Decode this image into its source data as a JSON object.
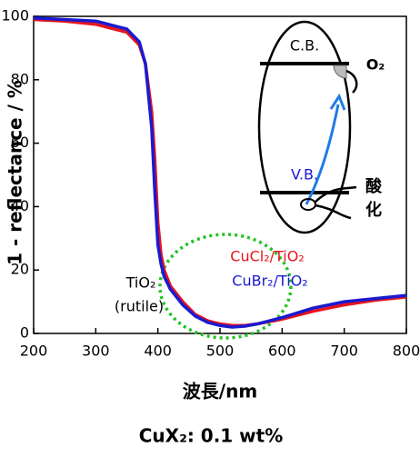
{
  "chart_data": {
    "type": "line",
    "x_label": "波長/nm",
    "y_label": "1 - reflectance / %",
    "xlim": [
      200,
      800
    ],
    "xticks": [
      200,
      300,
      400,
      500,
      600,
      700,
      800
    ],
    "ylim": [
      0,
      100
    ],
    "yticks": [
      0,
      20,
      40,
      60,
      80,
      100
    ],
    "x": [
      200,
      250,
      300,
      350,
      370,
      380,
      390,
      395,
      400,
      405,
      410,
      420,
      440,
      460,
      480,
      500,
      520,
      540,
      560,
      600,
      650,
      700,
      750,
      800
    ],
    "series": [
      {
        "name": "CuCl₂/TiO₂",
        "color": "#e8141c",
        "values": [
          99,
          98.5,
          97.5,
          95,
          91,
          85,
          70,
          55,
          35,
          25,
          20,
          15,
          10,
          6,
          4,
          3,
          2.5,
          2.5,
          3,
          4.5,
          7,
          9,
          10.5,
          11.5
        ]
      },
      {
        "name": "CuBr₂/TiO₂",
        "color": "#1a1ad0",
        "values": [
          99.5,
          99,
          98.5,
          96,
          92,
          85,
          65,
          45,
          28,
          22,
          18,
          14,
          9,
          5.5,
          3.5,
          2.5,
          2,
          2.3,
          3,
          5,
          8,
          10,
          11,
          12
        ]
      }
    ],
    "annotations": {
      "reference": [
        "TiO₂",
        "(rutile)"
      ],
      "cb": "C.B.",
      "vb": "V.B.",
      "o2": "O₂",
      "oxidation": [
        "酸",
        "化"
      ]
    },
    "note": "CuX₂: 0.1 wt%"
  }
}
